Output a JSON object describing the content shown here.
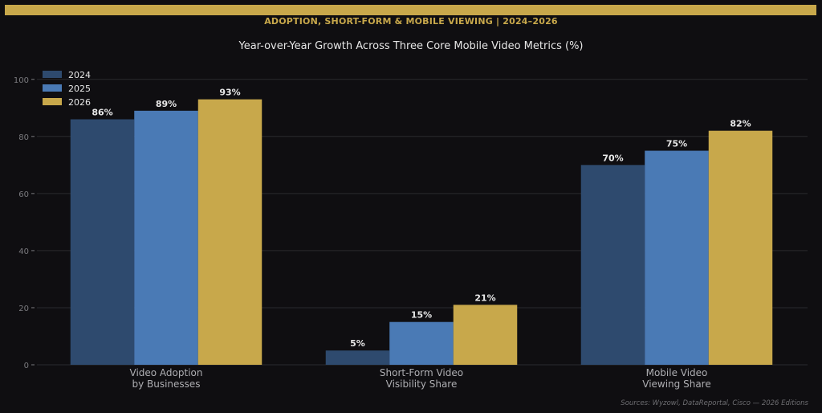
{
  "header": {
    "banner": "ADOPTION, SHORT-FORM & MOBILE VIEWING  |  2024–2026"
  },
  "footer": {
    "source": "Sources: Wyzowl, DataReportal, Cisco — 2026 Editions"
  },
  "colors": {
    "background": "#0f0e11",
    "accent": "#c8a84b",
    "gridline": "#2a2a2e",
    "axis_text": "#7a7a7e",
    "category_text": "#aeaeb2",
    "label_text": "#e8e8e8"
  },
  "chart_data": {
    "type": "bar",
    "title": "Year-over-Year Growth Across Three Core Mobile Video Metrics (%)",
    "xlabel": "",
    "ylabel": "",
    "ylim": [
      0,
      105
    ],
    "yticks": [
      0,
      20,
      40,
      60,
      80,
      100
    ],
    "grid": true,
    "legend_position": "top-left",
    "categories": [
      [
        "Video Adoption",
        "by Businesses"
      ],
      [
        "Short-Form Video",
        "Visibility Share"
      ],
      [
        "Mobile Video",
        "Viewing Share"
      ]
    ],
    "series": [
      {
        "name": "2024",
        "color": "#2e4a6e",
        "values": [
          86,
          5,
          70
        ],
        "labels": [
          "86%",
          "5%",
          "70%"
        ]
      },
      {
        "name": "2025",
        "color": "#4a7ab5",
        "values": [
          89,
          15,
          75
        ],
        "labels": [
          "89%",
          "15%",
          "75%"
        ]
      },
      {
        "name": "2026",
        "color": "#c8a84b",
        "values": [
          93,
          21,
          82
        ],
        "labels": [
          "93%",
          "21%",
          "82%"
        ]
      }
    ]
  }
}
